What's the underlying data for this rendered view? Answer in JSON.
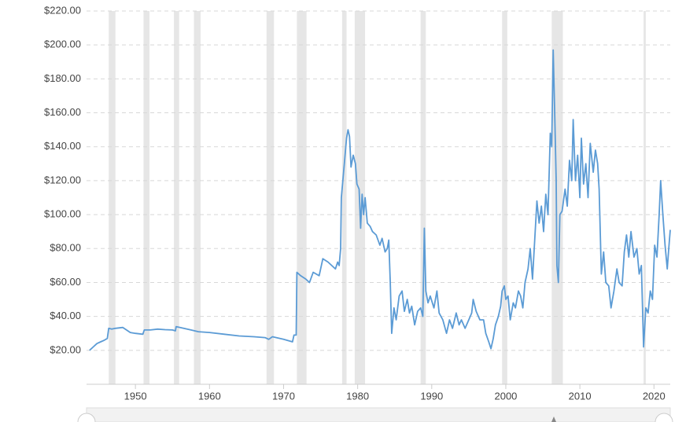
{
  "chart_data": {
    "type": "line",
    "color": "#5b9bd5",
    "shade_color": "#e6e6e6",
    "grid": true,
    "xlim": [
      1943.4,
      2022.2
    ],
    "ylim": [
      0,
      220
    ],
    "xticks": [
      1950,
      1960,
      1970,
      1980,
      1990,
      2000,
      2010,
      2020
    ],
    "yticks": [
      {
        "value": 20,
        "label": "$20.00"
      },
      {
        "value": 40,
        "label": "$40.00"
      },
      {
        "value": 60,
        "label": "$60.00"
      },
      {
        "value": 80,
        "label": "$80.00"
      },
      {
        "value": 100,
        "label": "$100.00"
      },
      {
        "value": 120,
        "label": "$120.00"
      },
      {
        "value": 140,
        "label": "$140.00"
      },
      {
        "value": 160,
        "label": "$160.00"
      },
      {
        "value": 180,
        "label": "$180.00"
      },
      {
        "value": 200,
        "label": "$200.00"
      },
      {
        "value": 220,
        "label": "$220.00"
      }
    ],
    "shaded_ranges": [
      [
        1946.4,
        1947.3
      ],
      [
        1951.1,
        1951.9
      ],
      [
        1955.2,
        1955.9
      ],
      [
        1957.9,
        1958.8
      ],
      [
        1967.7,
        1968.7
      ],
      [
        1971.8,
        1973.1
      ],
      [
        1977.9,
        1978.5
      ],
      [
        1979.6,
        1981.0
      ],
      [
        1988.5,
        1989.2
      ],
      [
        1999.5,
        2000.2
      ],
      [
        2006.2,
        2007.7
      ],
      [
        2018.6,
        2018.9
      ]
    ],
    "x": [
      1943.8,
      1944.3,
      1944.8,
      1945.3,
      1945.8,
      1946.2,
      1946.4,
      1946.8,
      1947.3,
      1948.3,
      1948.8,
      1949.3,
      1950.0,
      1951.0,
      1951.2,
      1952,
      1953,
      1954,
      1955,
      1955.4,
      1955.5,
      1956.5,
      1957.5,
      1958.5,
      1960,
      1962,
      1964,
      1966,
      1967.5,
      1968,
      1968.5,
      1970,
      1971.2,
      1971.4,
      1971.7,
      1971.8,
      1972.3,
      1973,
      1973.5,
      1974,
      1974.8,
      1975.3,
      1976,
      1976.5,
      1977,
      1977.3,
      1977.5,
      1977.7,
      1977.8,
      1978.2,
      1978.5,
      1978.7,
      1978.9,
      1979.1,
      1979.4,
      1979.7,
      1979.9,
      1980.2,
      1980.4,
      1980.6,
      1980.8,
      1981.0,
      1981.3,
      1981.7,
      1982,
      1982.5,
      1983,
      1983.3,
      1983.7,
      1984,
      1984.2,
      1984.4,
      1984.6,
      1984.9,
      1985.2,
      1985.6,
      1986,
      1986.3,
      1986.7,
      1987,
      1987.3,
      1987.7,
      1988.1,
      1988.5,
      1988.8,
      1989.0,
      1989.2,
      1989.5,
      1989.8,
      1990.3,
      1990.7,
      1991,
      1991.5,
      1992,
      1992.4,
      1992.8,
      1993.3,
      1993.7,
      1994,
      1994.5,
      1995,
      1995.4,
      1995.6,
      1996,
      1996.5,
      1997,
      1997.3,
      1997.7,
      1998,
      1998.3,
      1998.6,
      1999,
      1999.3,
      1999.5,
      1999.8,
      2000,
      2000.3,
      2000.6,
      2001,
      2001.3,
      2001.7,
      2002,
      2002.3,
      2002.6,
      2003,
      2003.3,
      2003.6,
      2003.9,
      2004.2,
      2004.5,
      2004.8,
      2005.1,
      2005.4,
      2005.7,
      2006,
      2006.2,
      2006.4,
      2006.6,
      2006.8,
      2006.9,
      2007.1,
      2007.3,
      2007.6,
      2008,
      2008.3,
      2008.6,
      2008.9,
      2009.1,
      2009.4,
      2009.7,
      2010,
      2010.2,
      2010.5,
      2010.8,
      2011.1,
      2011.4,
      2011.8,
      2012.1,
      2012.4,
      2012.6,
      2012.9,
      2013.2,
      2013.5,
      2013.9,
      2014.2,
      2014.6,
      2015,
      2015.3,
      2015.7,
      2016,
      2016.3,
      2016.6,
      2016.9,
      2017.3,
      2017.7,
      2018,
      2018.3,
      2018.6,
      2018.9,
      2019.2,
      2019.5,
      2019.8,
      2020.1,
      2020.4,
      2020.7,
      2020.9,
      2021.2,
      2021.5,
      2021.8,
      2022.0,
      2022.2
    ],
    "values": [
      20,
      22,
      24,
      25,
      26,
      27,
      33,
      32.5,
      33,
      33.5,
      32,
      30.5,
      30,
      29.5,
      32,
      32,
      32.5,
      32.2,
      32,
      31.5,
      34,
      33,
      32,
      31,
      30.5,
      29.5,
      28.5,
      28,
      27.5,
      26.5,
      28,
      26.5,
      25,
      29,
      29,
      66,
      64,
      62,
      60,
      66,
      64,
      74,
      72,
      70,
      68,
      72,
      70,
      80,
      110,
      130,
      145,
      150,
      146,
      128,
      135,
      130,
      118,
      115,
      92,
      112,
      100,
      110,
      95,
      93,
      90,
      88,
      82,
      86,
      78,
      80,
      85,
      60,
      30,
      45,
      38,
      52,
      55,
      43,
      50,
      42,
      46,
      35,
      43,
      45,
      40,
      92,
      55,
      48,
      52,
      45,
      55,
      42,
      38,
      30,
      38,
      33,
      42,
      35,
      38,
      33,
      38,
      42,
      50,
      43,
      38,
      38,
      30,
      25,
      21,
      27,
      35,
      40,
      46,
      55,
      58,
      50,
      52,
      38,
      48,
      45,
      55,
      52,
      45,
      60,
      68,
      80,
      62,
      85,
      108,
      95,
      105,
      90,
      112,
      100,
      148,
      140,
      197,
      160,
      120,
      70,
      60,
      100,
      102,
      115,
      105,
      132,
      120,
      156,
      120,
      135,
      110,
      145,
      118,
      130,
      110,
      142,
      125,
      138,
      130,
      115,
      65,
      78,
      60,
      58,
      45,
      55,
      68,
      60,
      58,
      78,
      88,
      75,
      90,
      75,
      80,
      65,
      70,
      22,
      45,
      42,
      55,
      50,
      82,
      75,
      100,
      120,
      100,
      82,
      68,
      80,
      91
    ]
  }
}
